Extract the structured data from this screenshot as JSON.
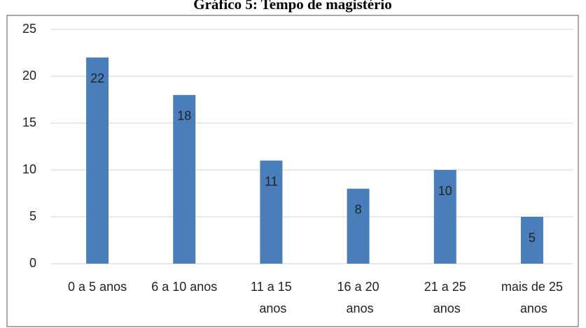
{
  "chart_data": {
    "type": "bar",
    "title": "Gráfico 5: Tempo de magistério",
    "categories": [
      "0 a 5 anos",
      "6 a 10 anos",
      "11 a 15 anos",
      "16 a 20 anos",
      "21 a 25 anos",
      "mais de 25 anos"
    ],
    "values": [
      22,
      18,
      11,
      8,
      10,
      5
    ],
    "color": "#4a7ebb",
    "ylim": [
      0,
      25
    ],
    "yticks": [
      0,
      5,
      10,
      15,
      20,
      25
    ],
    "grid": true
  }
}
